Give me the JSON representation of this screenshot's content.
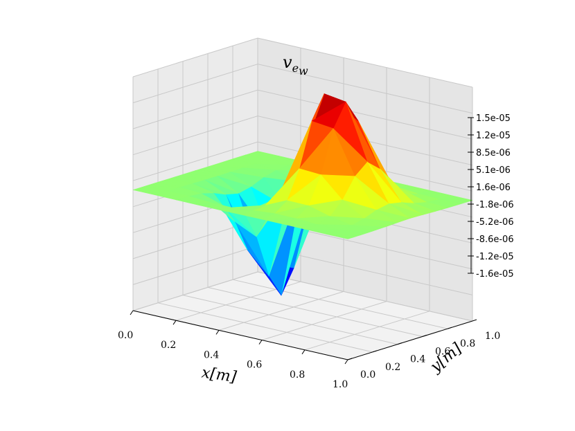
{
  "chart_data": {
    "type": "surface3d",
    "title": {
      "base": "v",
      "subscript": "e",
      "subsubscript": "w"
    },
    "xlabel": "x[m]",
    "ylabel": "y[m]",
    "colormap": "jet",
    "x_ticks": [
      "0.0",
      "0.2",
      "0.4",
      "0.6",
      "0.8",
      "1.0"
    ],
    "y_ticks": [
      "0.0",
      "0.2",
      "0.4",
      "0.6",
      "0.8",
      "1.0"
    ],
    "z_ticks": [
      "-1.6e-05",
      "-1.2e-05",
      "-8.6e-06",
      "-5.2e-06",
      "-1.8e-06",
      "1.6e-06",
      "5.1e-06",
      "8.5e-06",
      "1.2e-05",
      "1.5e-05"
    ],
    "xlim": [
      0,
      1
    ],
    "ylim": [
      0,
      1
    ],
    "zlim": [
      -1.6e-05,
      1.5e-05
    ],
    "grid": true,
    "surface": {
      "description_peak": {
        "x": 0.62,
        "y": 0.5,
        "z": 1.5e-05
      },
      "description_trough": {
        "x": 0.38,
        "y": 0.5,
        "z": -1.6e-05
      },
      "x": [
        0.0,
        0.1,
        0.2,
        0.3,
        0.4,
        0.5,
        0.6,
        0.7,
        0.8,
        0.9,
        1.0
      ],
      "y": [
        0.0,
        0.1,
        0.2,
        0.3,
        0.4,
        0.5,
        0.6,
        0.7,
        0.8,
        0.9,
        1.0
      ]
    }
  }
}
